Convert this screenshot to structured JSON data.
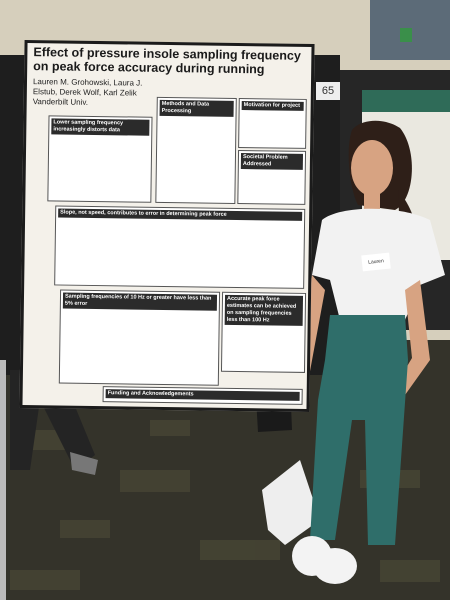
{
  "poster": {
    "title": "Effect of pressure insole sampling frequency on peak force accuracy during running",
    "authors": "Lauren M. Grohowski, Laura J. Elstub, Derek Wolf, Karl Zelik Vanderbilt Univ.",
    "sections": [
      {
        "heading": "Lower sampling frequency increasingly distorts data"
      },
      {
        "heading": "Methods and Data Processing"
      },
      {
        "heading": "Motivation for project"
      },
      {
        "heading": "Societal Problem Addressed"
      },
      {
        "heading": "Slope, not speed, contributes to error in determining peak force"
      },
      {
        "heading": "Sampling frequencies of 10 Hz or greater have less than 5% error"
      },
      {
        "heading": "Accurate peak force estimates can be achieved on sampling frequencies less than 100 Hz"
      },
      {
        "heading": "Funding and Acknowledgements"
      }
    ]
  },
  "board_number": "65",
  "name_tag": "Lauren"
}
